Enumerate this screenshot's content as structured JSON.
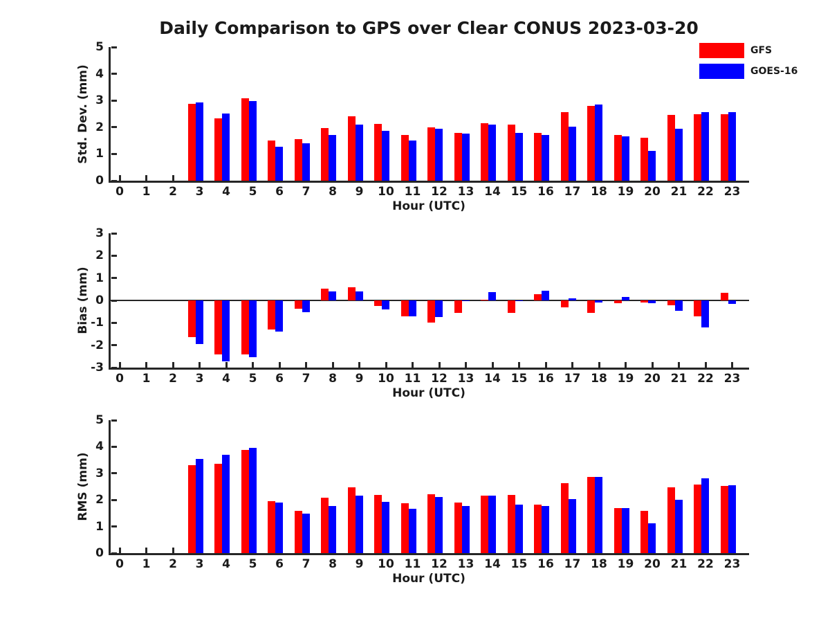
{
  "page": {
    "title": "Daily Comparison to GPS over Clear CONUS 2023-03-20"
  },
  "colors": {
    "gfs": "#ff0000",
    "goes16": "#0000ff",
    "axis": "#262626",
    "text": "#1a1a1a"
  },
  "legend": {
    "items": [
      {
        "label": "GFS",
        "color": "#ff0000"
      },
      {
        "label": "GOES-16",
        "color": "#0000ff"
      }
    ]
  },
  "chart_data": [
    {
      "type": "bar",
      "ylabel": "Std. Dev. (mm)",
      "xlabel": "Hour (UTC)",
      "ylim": [
        0,
        5
      ],
      "yticks": [
        0,
        1,
        2,
        3,
        4,
        5
      ],
      "grid": false,
      "zero_line": false,
      "legend_position": "top-right",
      "categories": [
        "0",
        "1",
        "2",
        "3",
        "4",
        "5",
        "6",
        "7",
        "8",
        "9",
        "10",
        "11",
        "12",
        "13",
        "14",
        "15",
        "16",
        "17",
        "18",
        "19",
        "20",
        "21",
        "22",
        "23"
      ],
      "series": [
        {
          "name": "GFS",
          "values": [
            null,
            null,
            null,
            2.87,
            2.32,
            3.07,
            1.5,
            1.55,
            1.98,
            2.42,
            2.13,
            1.7,
            2.0,
            1.8,
            2.15,
            2.1,
            1.78,
            2.57,
            2.8,
            1.72,
            1.6,
            2.45,
            2.5,
            2.48
          ]
        },
        {
          "name": "GOES-16",
          "values": [
            null,
            null,
            null,
            2.93,
            2.52,
            2.98,
            1.28,
            1.4,
            1.7,
            2.1,
            1.87,
            1.5,
            1.95,
            1.77,
            2.1,
            1.8,
            1.7,
            2.02,
            2.86,
            1.67,
            1.12,
            1.94,
            2.57,
            2.57
          ]
        }
      ]
    },
    {
      "type": "bar",
      "ylabel": "Bias (mm)",
      "xlabel": "Hour (UTC)",
      "ylim": [
        -3,
        3
      ],
      "yticks": [
        3,
        2,
        1,
        0,
        -1,
        -2,
        -3
      ],
      "grid": false,
      "zero_line": true,
      "categories": [
        "0",
        "1",
        "2",
        "3",
        "4",
        "5",
        "6",
        "7",
        "8",
        "9",
        "10",
        "11",
        "12",
        "13",
        "14",
        "15",
        "16",
        "17",
        "18",
        "19",
        "20",
        "21",
        "22",
        "23"
      ],
      "series": [
        {
          "name": "GFS",
          "values": [
            null,
            null,
            null,
            -1.65,
            -2.42,
            -2.4,
            -1.3,
            -0.36,
            0.54,
            0.59,
            -0.25,
            -0.7,
            -1.0,
            -0.55,
            0.03,
            -0.55,
            0.27,
            -0.3,
            -0.55,
            -0.13,
            -0.08,
            -0.22,
            -0.7,
            0.33
          ]
        },
        {
          "name": "GOES-16",
          "values": [
            null,
            null,
            null,
            -1.95,
            -2.72,
            -2.55,
            -1.4,
            -0.54,
            0.39,
            0.41,
            -0.4,
            -0.7,
            -0.73,
            -0.03,
            0.38,
            -0.03,
            0.44,
            0.1,
            -0.08,
            0.14,
            -0.12,
            -0.45,
            -1.2,
            -0.15
          ]
        }
      ]
    },
    {
      "type": "bar",
      "ylabel": "RMS (mm)",
      "xlabel": "Hour (UTC)",
      "ylim": [
        0,
        5
      ],
      "yticks": [
        0,
        1,
        2,
        3,
        4,
        5
      ],
      "grid": false,
      "zero_line": false,
      "categories": [
        "0",
        "1",
        "2",
        "3",
        "4",
        "5",
        "6",
        "7",
        "8",
        "9",
        "10",
        "11",
        "12",
        "13",
        "14",
        "15",
        "16",
        "17",
        "18",
        "19",
        "20",
        "21",
        "22",
        "23"
      ],
      "series": [
        {
          "name": "GFS",
          "values": [
            null,
            null,
            null,
            3.32,
            3.35,
            3.88,
            1.95,
            1.6,
            2.08,
            2.48,
            2.2,
            1.87,
            2.22,
            1.9,
            2.17,
            2.18,
            1.82,
            2.62,
            2.87,
            1.7,
            1.6,
            2.48,
            2.57,
            2.52
          ]
        },
        {
          "name": "GOES-16",
          "values": [
            null,
            null,
            null,
            3.55,
            3.7,
            3.95,
            1.9,
            1.48,
            1.77,
            2.15,
            1.92,
            1.66,
            2.1,
            1.77,
            2.15,
            1.82,
            1.77,
            2.03,
            2.87,
            1.68,
            1.12,
            2.0,
            2.82,
            2.56
          ]
        }
      ]
    }
  ]
}
